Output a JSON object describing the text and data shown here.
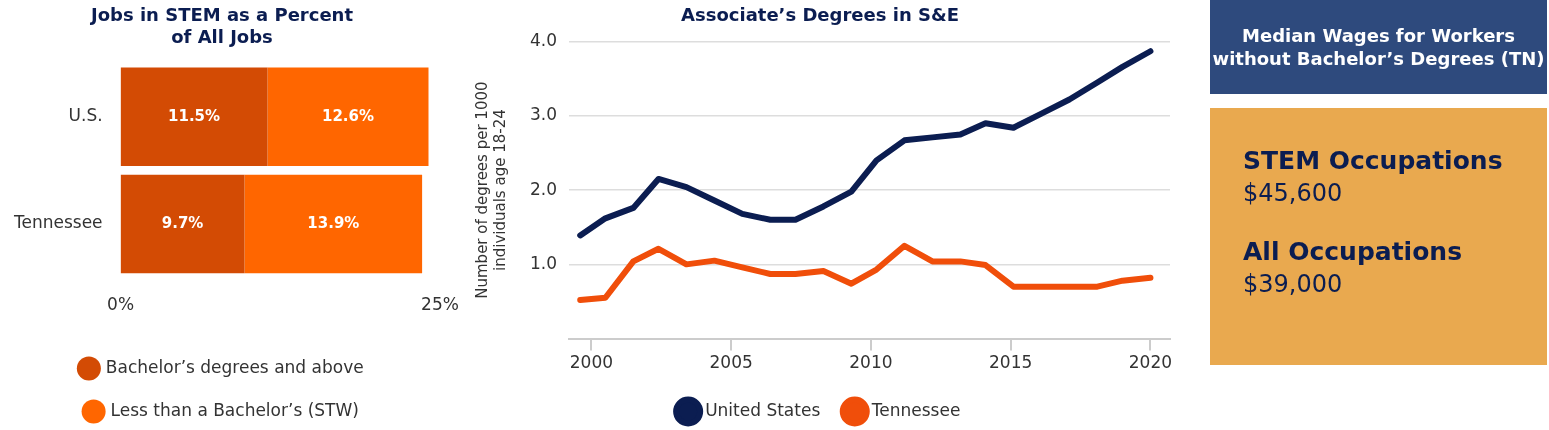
{
  "chart_data": [
    {
      "type": "bar",
      "orientation": "horizontal",
      "stacked": true,
      "title": "Jobs in STEM as a Percent of All Jobs",
      "categories": [
        "U.S.",
        "Tennessee"
      ],
      "series": [
        {
          "name": "Bachelor’s degrees and above",
          "color": "#d34b04",
          "values": [
            11.5,
            9.7
          ]
        },
        {
          "name": "Less than a Bachelor’s (STW)",
          "color": "#ff6600",
          "values": [
            12.6,
            13.9
          ]
        }
      ],
      "value_labels": [
        [
          "11.5%",
          "9.7%"
        ],
        [
          "12.6%",
          "13.9%"
        ]
      ],
      "xlim": [
        0,
        25
      ],
      "xticks": [
        {
          "value": 0,
          "label": "0%"
        },
        {
          "value": 25,
          "label": "25%"
        }
      ],
      "legend": "bottom",
      "grid": false
    },
    {
      "type": "line",
      "title": "Associate’s Degrees in S&E",
      "ylabel": "Number of degrees per 1000 individuals age 18-24",
      "x": [
        1999.6,
        2000.5,
        2001.5,
        2002.4,
        2003.4,
        2004.4,
        2005.4,
        2006.4,
        2007.3,
        2008.3,
        2009.3,
        2010.2,
        2011.2,
        2012.2,
        2013.2,
        2014.1,
        2015.1,
        2016.1,
        2017.1,
        2018.1,
        2019.0,
        2020.0
      ],
      "series": [
        {
          "name": "United States",
          "color": "#0b1d51",
          "values": [
            1.39,
            1.62,
            1.76,
            2.15,
            2.04,
            1.86,
            1.68,
            1.6,
            1.6,
            1.78,
            1.98,
            2.4,
            2.67,
            2.71,
            2.75,
            2.9,
            2.84,
            3.03,
            3.22,
            3.45,
            3.66,
            3.87
          ]
        },
        {
          "name": "Tennessee",
          "color": "#f04e0a",
          "values": [
            0.52,
            0.55,
            1.04,
            1.21,
            1.0,
            1.05,
            0.96,
            0.87,
            0.87,
            0.91,
            0.74,
            0.93,
            1.25,
            1.04,
            1.04,
            0.99,
            0.7,
            0.7,
            0.7,
            0.7,
            0.78,
            0.82
          ]
        }
      ],
      "xlim": [
        1999.2,
        2020.7
      ],
      "xticks": [
        2000,
        2005,
        2010,
        2015,
        2020
      ],
      "ylim": [
        0,
        4
      ],
      "yticks": [
        {
          "value": 0,
          "label": null
        },
        {
          "value": 1,
          "label": "1.0"
        },
        {
          "value": 2,
          "label": "2.0"
        },
        {
          "value": 3,
          "label": "3.0"
        },
        {
          "value": 4,
          "label": "4.0"
        }
      ],
      "grid": "y",
      "legend": "bottom",
      "marker": "none",
      "line_style": "solid"
    },
    {
      "type": "other",
      "title": "Median Wages for Workers without Bachelor’s Degrees (TN)",
      "annotations": [
        "STEM Occupations",
        "$45,600",
        "All Occupations",
        "$39,000"
      ]
    }
  ]
}
